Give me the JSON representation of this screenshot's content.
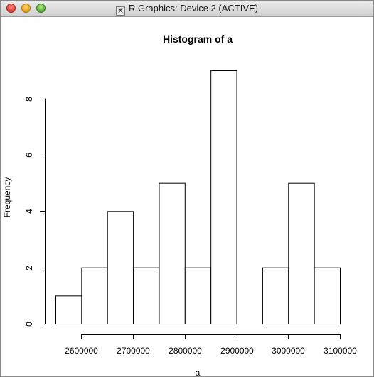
{
  "window": {
    "title": "R Graphics: Device 2 (ACTIVE)",
    "icon": "x11-icon"
  },
  "chart_data": {
    "type": "bar",
    "title": "Histogram of a",
    "xlabel": "a",
    "ylabel": "Frequency",
    "bins": [
      [
        2550000,
        2600000
      ],
      [
        2600000,
        2650000
      ],
      [
        2650000,
        2700000
      ],
      [
        2700000,
        2750000
      ],
      [
        2750000,
        2800000
      ],
      [
        2800000,
        2850000
      ],
      [
        2850000,
        2900000
      ],
      [
        2900000,
        2950000
      ],
      [
        2950000,
        3000000
      ],
      [
        3000000,
        3050000
      ],
      [
        3050000,
        3100000
      ]
    ],
    "values": [
      1,
      2,
      4,
      2,
      5,
      2,
      9,
      0,
      2,
      5,
      2
    ],
    "xticks": [
      2600000,
      2700000,
      2800000,
      2900000,
      3000000,
      3100000
    ],
    "xtick_labels": [
      "2600000",
      "2700000",
      "2800000",
      "2900000",
      "3000000",
      "3100000"
    ],
    "yticks": [
      0,
      2,
      4,
      6,
      8
    ],
    "ytick_labels": [
      "0",
      "2",
      "4",
      "6",
      "8"
    ],
    "xlim": [
      2550000,
      3100000
    ],
    "ylim": [
      0,
      9
    ],
    "grid": false
  }
}
